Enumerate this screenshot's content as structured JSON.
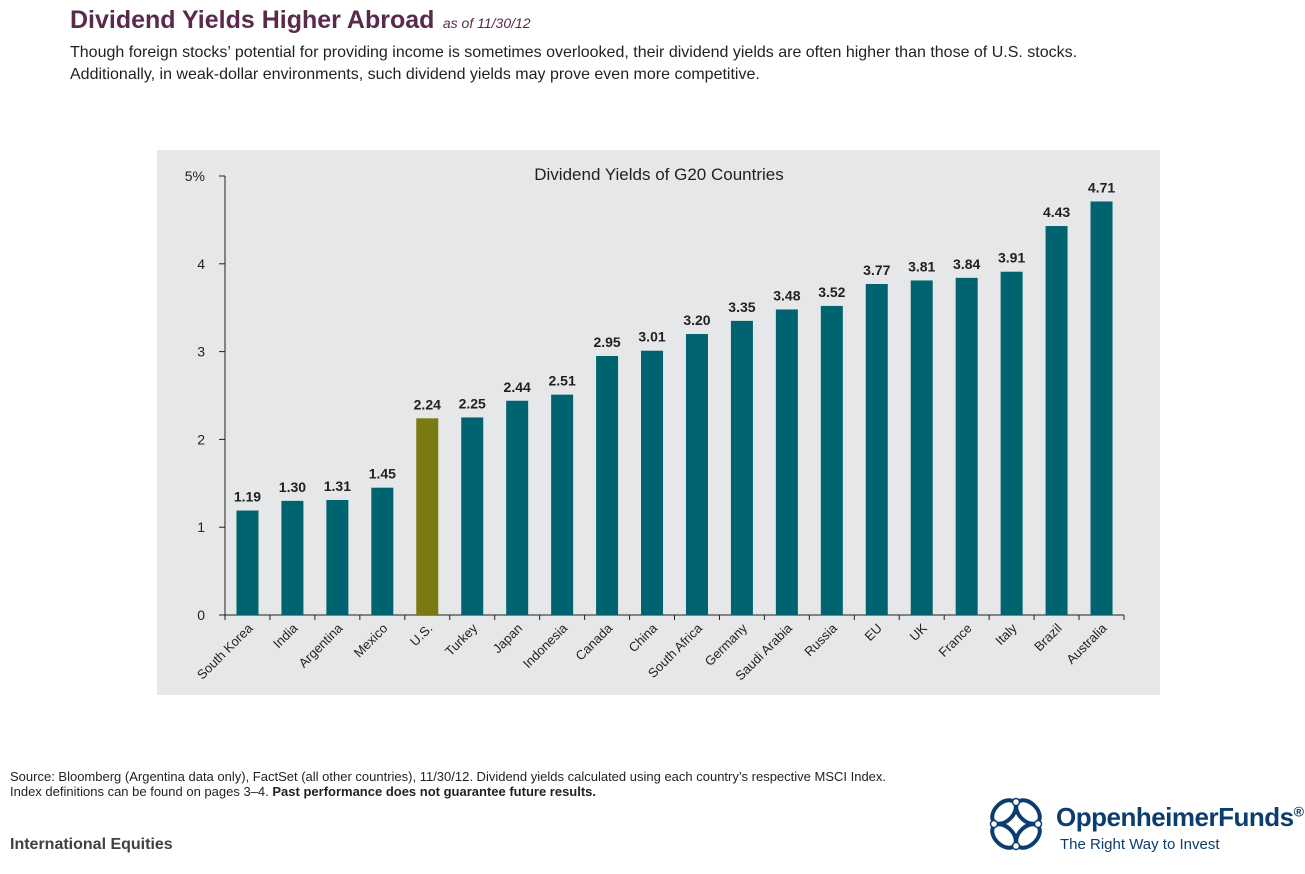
{
  "header": {
    "title": "Dividend Yields Higher Abroad",
    "as_of": "as of 11/30/12",
    "intro_line1": "Though foreign stocks’ potential for providing income is sometimes overlooked, their dividend yields are often higher than those of U.S. stocks.",
    "intro_line2": "Additionally, in weak-dollar environments, such dividend yields may prove even more competitive."
  },
  "chart_data": {
    "type": "bar",
    "title": "Dividend Yields of G20 Countries",
    "xlabel": "",
    "ylabel": "",
    "ylim": [
      0,
      5
    ],
    "yticks": [
      "0",
      "1",
      "2",
      "3",
      "4",
      "5%"
    ],
    "categories": [
      "South Korea",
      "India",
      "Argentina",
      "Mexico",
      "U.S.",
      "Turkey",
      "Japan",
      "Indonesia",
      "Canada",
      "China",
      "South Africa",
      "Germany",
      "Saudi Arabia",
      "Russia",
      "EU",
      "UK",
      "France",
      "Italy",
      "Brazil",
      "Australia"
    ],
    "values": [
      1.19,
      1.3,
      1.31,
      1.45,
      2.24,
      2.25,
      2.44,
      2.51,
      2.95,
      3.01,
      3.2,
      3.35,
      3.48,
      3.52,
      3.77,
      3.81,
      3.84,
      3.91,
      4.43,
      4.71
    ],
    "value_labels": [
      "1.19",
      "1.30",
      "1.31",
      "1.45",
      "2.24",
      "2.25",
      "2.44",
      "2.51",
      "2.95",
      "3.01",
      "3.20",
      "3.35",
      "3.48",
      "3.52",
      "3.77",
      "3.81",
      "3.84",
      "3.91",
      "4.43",
      "4.71"
    ],
    "highlight_category": "U.S.",
    "bar_color": "#006470",
    "highlight_color": "#7a7a12",
    "background_color": "#e6e7e8",
    "grid": false
  },
  "footer": {
    "source_line1": "Source: Bloomberg (Argentina data only), FactSet (all other countries), 11/30/12. Dividend yields calculated using each country’s respective MSCI Index.",
    "source_line2": "Index definitions can be found on pages 3–4.",
    "disclaimer": "Past performance does not guarantee future results.",
    "section": "International Equities"
  },
  "logo": {
    "name": "OppenheimerFunds",
    "registered": "®",
    "tagline": "The Right Way to Invest",
    "color": "#0b3d6e"
  }
}
